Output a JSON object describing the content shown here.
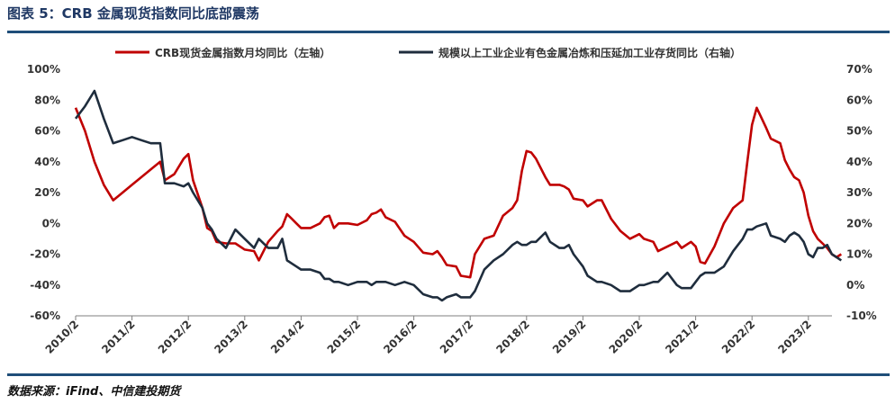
{
  "header": {
    "title": "图表 5：CRB 金属现货指数同比底部震荡"
  },
  "footer": {
    "source": "数据来源：iFind、中信建投期货"
  },
  "colors": {
    "series_left": "#c00000",
    "series_right": "#1f2d3d",
    "rule": "#1f4e79"
  },
  "chart_data": {
    "type": "line",
    "title": "",
    "legend_position": "top",
    "grid": false,
    "x_ticks": [
      "2010/2",
      "2011/2",
      "2012/2",
      "2013/2",
      "2014/2",
      "2015/2",
      "2016/2",
      "2017/2",
      "2018/2",
      "2019/2",
      "2020/2",
      "2021/2",
      "2022/2",
      "2023/2"
    ],
    "y_left": {
      "range": [
        -60,
        100
      ],
      "ticks": [
        "-60%",
        "-40%",
        "-20%",
        "0%",
        "20%",
        "40%",
        "60%",
        "80%",
        "100%"
      ]
    },
    "y_right": {
      "range": [
        -10,
        70
      ],
      "ticks": [
        "-10%",
        "0%",
        "10%",
        "20%",
        "30%",
        "40%",
        "50%",
        "60%",
        "70%"
      ]
    },
    "series": [
      {
        "name": "CRB现货金属指数月均同比（左轴）",
        "axis": "left",
        "points": [
          [
            "2010/2",
            75
          ],
          [
            "2010/4",
            60
          ],
          [
            "2010/6",
            40
          ],
          [
            "2010/8",
            25
          ],
          [
            "2010/10",
            15
          ],
          [
            "2010/12",
            20
          ],
          [
            "2011/2",
            25
          ],
          [
            "2011/4",
            30
          ],
          [
            "2011/6",
            35
          ],
          [
            "2011/8",
            40
          ],
          [
            "2011/9",
            28
          ],
          [
            "2011/11",
            32
          ],
          [
            "2012/1",
            42
          ],
          [
            "2012/2",
            45
          ],
          [
            "2012/3",
            28
          ],
          [
            "2012/5",
            10
          ],
          [
            "2012/6",
            -3
          ],
          [
            "2012/7",
            -5
          ],
          [
            "2012/8",
            -12
          ],
          [
            "2012/10",
            -13
          ],
          [
            "2012/12",
            -13
          ],
          [
            "2013/2",
            -17
          ],
          [
            "2013/4",
            -18
          ],
          [
            "2013/5",
            -24
          ],
          [
            "2013/7",
            -12
          ],
          [
            "2013/9",
            -5
          ],
          [
            "2013/10",
            -2
          ],
          [
            "2013/11",
            6
          ],
          [
            "2013/12",
            3
          ],
          [
            "2014/1",
            0
          ],
          [
            "2014/2",
            -3
          ],
          [
            "2014/4",
            -3
          ],
          [
            "2014/6",
            0
          ],
          [
            "2014/7",
            4
          ],
          [
            "2014/8",
            5
          ],
          [
            "2014/9",
            -3
          ],
          [
            "2014/10",
            0
          ],
          [
            "2014/12",
            0
          ],
          [
            "2015/2",
            -1
          ],
          [
            "2015/4",
            2
          ],
          [
            "2015/5",
            6
          ],
          [
            "2015/6",
            7
          ],
          [
            "2015/7",
            9
          ],
          [
            "2015/8",
            4
          ],
          [
            "2015/10",
            1
          ],
          [
            "2015/12",
            -8
          ],
          [
            "2016/2",
            -12
          ],
          [
            "2016/4",
            -19
          ],
          [
            "2016/6",
            -20
          ],
          [
            "2016/7",
            -18
          ],
          [
            "2016/8",
            -22
          ],
          [
            "2016/9",
            -27
          ],
          [
            "2016/11",
            -28
          ],
          [
            "2016/12",
            -34
          ],
          [
            "2017/2",
            -35
          ],
          [
            "2017/3",
            -20
          ],
          [
            "2017/5",
            -10
          ],
          [
            "2017/7",
            -8
          ],
          [
            "2017/9",
            5
          ],
          [
            "2017/11",
            10
          ],
          [
            "2017/12",
            15
          ],
          [
            "2018/1",
            34
          ],
          [
            "2018/2",
            47
          ],
          [
            "2018/3",
            46
          ],
          [
            "2018/4",
            42
          ],
          [
            "2018/6",
            30
          ],
          [
            "2018/7",
            25
          ],
          [
            "2018/9",
            25
          ],
          [
            "2018/10",
            24
          ],
          [
            "2018/11",
            22
          ],
          [
            "2018/12",
            16
          ],
          [
            "2019/2",
            15
          ],
          [
            "2019/3",
            11
          ],
          [
            "2019/5",
            15
          ],
          [
            "2019/6",
            15
          ],
          [
            "2019/8",
            3
          ],
          [
            "2019/10",
            -5
          ],
          [
            "2019/12",
            -10
          ],
          [
            "2020/2",
            -7
          ],
          [
            "2020/3",
            -10
          ],
          [
            "2020/5",
            -12
          ],
          [
            "2020/6",
            -18
          ],
          [
            "2020/8",
            -15
          ],
          [
            "2020/10",
            -12
          ],
          [
            "2020/11",
            -16
          ],
          [
            "2021/1",
            -12
          ],
          [
            "2021/2",
            -15
          ],
          [
            "2021/3",
            -25
          ],
          [
            "2021/4",
            -26
          ],
          [
            "2021/6",
            -15
          ],
          [
            "2021/8",
            0
          ],
          [
            "2021/10",
            10
          ],
          [
            "2021/12",
            15
          ],
          [
            "2022/1",
            40
          ],
          [
            "2022/2",
            64
          ],
          [
            "2022/3",
            75
          ],
          [
            "2022/5",
            62
          ],
          [
            "2022/6",
            55
          ],
          [
            "2022/8",
            52
          ],
          [
            "2022/9",
            41
          ],
          [
            "2022/10",
            35
          ],
          [
            "2022/11",
            30
          ],
          [
            "2022/12",
            28
          ],
          [
            "2023/1",
            20
          ],
          [
            "2023/2",
            5
          ],
          [
            "2023/3",
            -5
          ],
          [
            "2023/4",
            -10
          ],
          [
            "2023/5",
            -13
          ],
          [
            "2023/6",
            -16
          ],
          [
            "2023/7",
            -20
          ],
          [
            "2023/8",
            -22
          ],
          [
            "2023/9",
            -20
          ]
        ]
      },
      {
        "name": "规模以上工业企业有色金属冶炼和压延加工业存货同比（右轴）",
        "axis": "right",
        "points": [
          [
            "2010/2",
            54
          ],
          [
            "2010/4",
            58
          ],
          [
            "2010/6",
            63
          ],
          [
            "2010/8",
            54
          ],
          [
            "2010/10",
            46
          ],
          [
            "2010/12",
            47
          ],
          [
            "2011/2",
            48
          ],
          [
            "2011/4",
            47
          ],
          [
            "2011/6",
            46
          ],
          [
            "2011/8",
            46
          ],
          [
            "2011/9",
            33
          ],
          [
            "2011/11",
            33
          ],
          [
            "2012/1",
            32
          ],
          [
            "2012/2",
            33
          ],
          [
            "2012/3",
            30
          ],
          [
            "2012/5",
            25
          ],
          [
            "2012/6",
            20
          ],
          [
            "2012/7",
            18
          ],
          [
            "2012/8",
            15
          ],
          [
            "2012/10",
            12
          ],
          [
            "2012/12",
            18
          ],
          [
            "2013/2",
            15
          ],
          [
            "2013/4",
            12
          ],
          [
            "2013/5",
            15
          ],
          [
            "2013/7",
            12
          ],
          [
            "2013/9",
            12
          ],
          [
            "2013/10",
            15
          ],
          [
            "2013/11",
            8
          ],
          [
            "2013/12",
            7
          ],
          [
            "2014/1",
            6
          ],
          [
            "2014/2",
            5
          ],
          [
            "2014/4",
            5
          ],
          [
            "2014/6",
            4
          ],
          [
            "2014/7",
            2
          ],
          [
            "2014/8",
            2
          ],
          [
            "2014/9",
            1
          ],
          [
            "2014/10",
            1
          ],
          [
            "2014/12",
            0
          ],
          [
            "2015/2",
            1
          ],
          [
            "2015/4",
            1
          ],
          [
            "2015/5",
            0
          ],
          [
            "2015/6",
            1
          ],
          [
            "2015/7",
            1
          ],
          [
            "2015/8",
            1
          ],
          [
            "2015/10",
            0
          ],
          [
            "2015/12",
            1
          ],
          [
            "2016/2",
            0
          ],
          [
            "2016/4",
            -3
          ],
          [
            "2016/6",
            -4
          ],
          [
            "2016/7",
            -4
          ],
          [
            "2016/8",
            -5
          ],
          [
            "2016/9",
            -4
          ],
          [
            "2016/11",
            -3
          ],
          [
            "2016/12",
            -4
          ],
          [
            "2017/2",
            -4
          ],
          [
            "2017/3",
            -2
          ],
          [
            "2017/5",
            5
          ],
          [
            "2017/7",
            8
          ],
          [
            "2017/9",
            10
          ],
          [
            "2017/11",
            13
          ],
          [
            "2017/12",
            14
          ],
          [
            "2018/1",
            13
          ],
          [
            "2018/2",
            13
          ],
          [
            "2018/3",
            14
          ],
          [
            "2018/4",
            14
          ],
          [
            "2018/6",
            17
          ],
          [
            "2018/7",
            14
          ],
          [
            "2018/9",
            12
          ],
          [
            "2018/10",
            12
          ],
          [
            "2018/11",
            13
          ],
          [
            "2018/12",
            10
          ],
          [
            "2019/2",
            6
          ],
          [
            "2019/3",
            3
          ],
          [
            "2019/5",
            1
          ],
          [
            "2019/6",
            1
          ],
          [
            "2019/8",
            0
          ],
          [
            "2019/10",
            -2
          ],
          [
            "2019/12",
            -2
          ],
          [
            "2020/2",
            0
          ],
          [
            "2020/3",
            0
          ],
          [
            "2020/5",
            1
          ],
          [
            "2020/6",
            1
          ],
          [
            "2020/8",
            4
          ],
          [
            "2020/10",
            0
          ],
          [
            "2020/11",
            -1
          ],
          [
            "2021/1",
            -1
          ],
          [
            "2021/2",
            1
          ],
          [
            "2021/3",
            3
          ],
          [
            "2021/4",
            4
          ],
          [
            "2021/6",
            4
          ],
          [
            "2021/8",
            6
          ],
          [
            "2021/10",
            11
          ],
          [
            "2021/12",
            15
          ],
          [
            "2022/1",
            18
          ],
          [
            "2022/2",
            18
          ],
          [
            "2022/3",
            19
          ],
          [
            "2022/5",
            20
          ],
          [
            "2022/6",
            16
          ],
          [
            "2022/8",
            15
          ],
          [
            "2022/9",
            14
          ],
          [
            "2022/10",
            16
          ],
          [
            "2022/11",
            17
          ],
          [
            "2022/12",
            16
          ],
          [
            "2023/1",
            14
          ],
          [
            "2023/2",
            10
          ],
          [
            "2023/3",
            9
          ],
          [
            "2023/4",
            12
          ],
          [
            "2023/5",
            12
          ],
          [
            "2023/6",
            13
          ],
          [
            "2023/7",
            10
          ],
          [
            "2023/8",
            9
          ],
          [
            "2023/9",
            8
          ]
        ]
      }
    ]
  }
}
